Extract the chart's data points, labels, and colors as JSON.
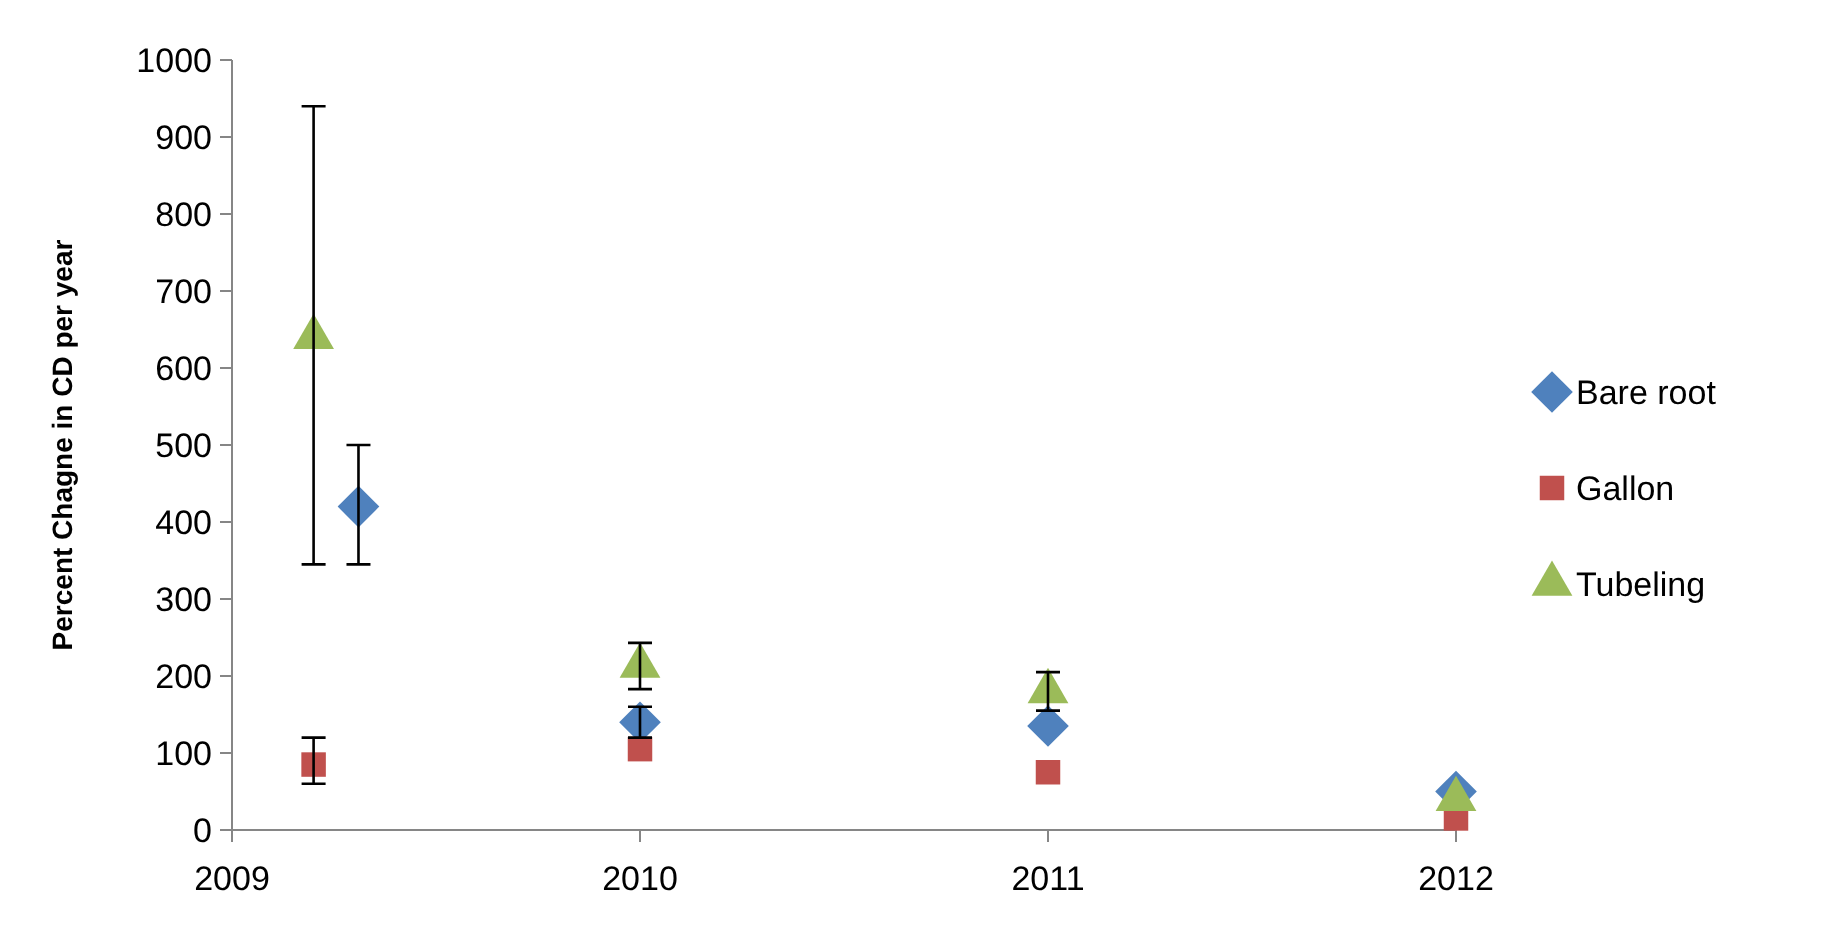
{
  "chart_data": {
    "type": "scatter",
    "ylabel": "Percent Chagne in CD per year",
    "xlim": [
      2009,
      2012
    ],
    "xticks": [
      2009,
      2010,
      2011,
      2012
    ],
    "ylim": [
      0,
      1000
    ],
    "yticks": [
      0,
      100,
      200,
      300,
      400,
      500,
      600,
      700,
      800,
      900,
      1000
    ],
    "grid": false,
    "legend": "right",
    "series": [
      {
        "name": "Bare root",
        "color": "#4f81bd",
        "marker": "diamond",
        "x": [
          2009.31,
          2010,
          2011,
          2012
        ],
        "values": [
          420,
          140,
          135,
          50
        ],
        "errors": [
          [
            345,
            500
          ],
          20,
          null,
          null
        ]
      },
      {
        "name": "Gallon",
        "color": "#c0504d",
        "marker": "square",
        "x": [
          2009.2,
          2010,
          2011,
          2012
        ],
        "values": [
          85,
          105,
          75,
          15
        ],
        "errors": [
          [
            60,
            120
          ],
          null,
          null,
          null
        ]
      },
      {
        "name": "Tubeling",
        "color": "#9bbb59",
        "marker": "triangle",
        "x": [
          2009.2,
          2010,
          2011,
          2012
        ],
        "values": [
          640,
          213,
          180,
          40
        ],
        "errors": [
          [
            345,
            940
          ],
          30,
          25,
          null
        ]
      }
    ]
  }
}
